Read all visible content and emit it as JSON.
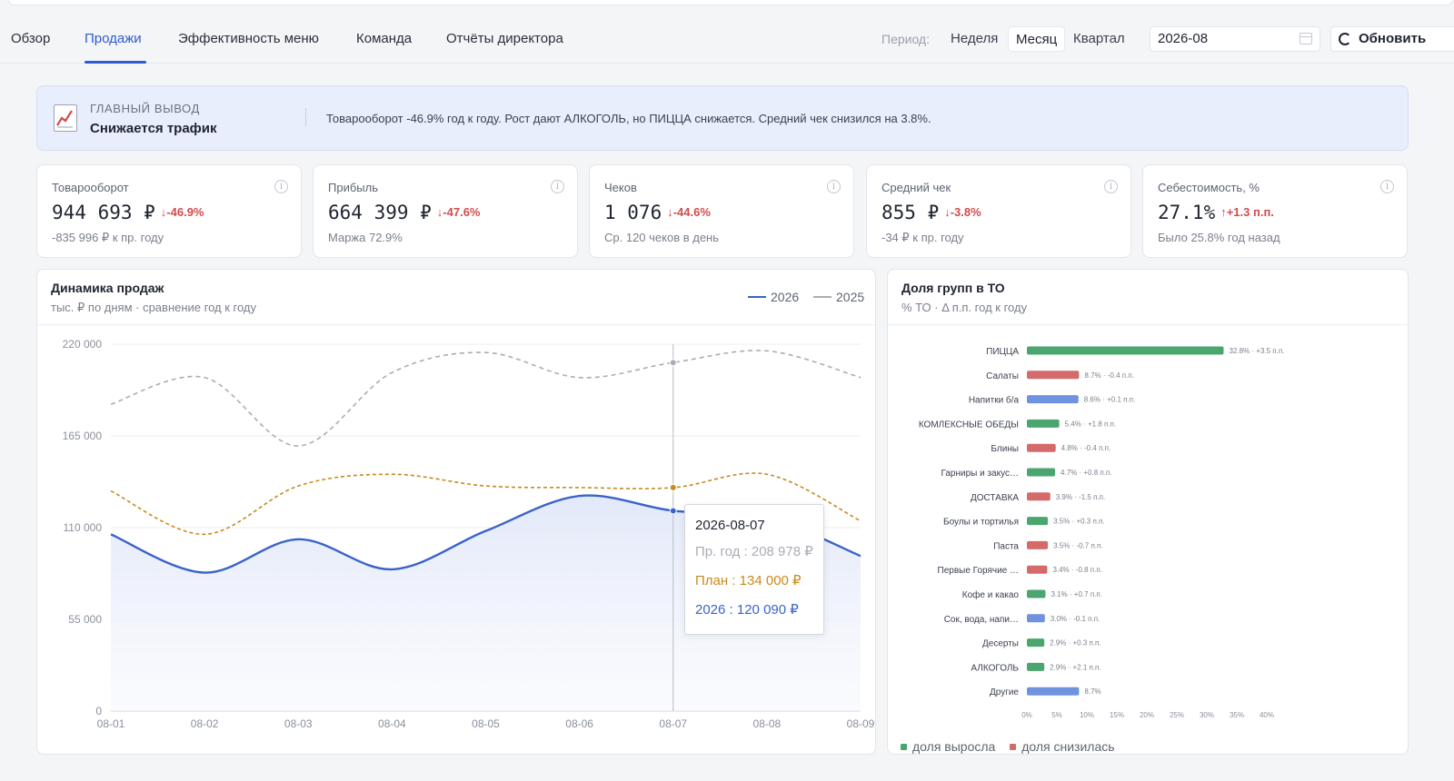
{
  "tabs": [
    {
      "label": "Обзор",
      "active": false
    },
    {
      "label": "Продажи",
      "active": true
    },
    {
      "label": "Эффективность меню",
      "active": false
    },
    {
      "label": "Команда",
      "active": false
    },
    {
      "label": "Отчёты директора",
      "active": false
    }
  ],
  "period": {
    "label": "Период:",
    "options": [
      "Неделя",
      "Месяц",
      "Квартал"
    ],
    "selected": "Месяц",
    "date_value": "2026-08",
    "refresh_label": "Обновить"
  },
  "banner": {
    "kicker": "ГЛАВНЫЙ ВЫВОД",
    "title": "Снижается трафик",
    "text": "Товарооборот -46.9% год к году. Рост дают АЛКОГОЛЬ, но ПИЦЦА снижается. Средний чек снизился на 3.8%."
  },
  "kpis": [
    {
      "label": "Товарооборот",
      "value": "944 693 ₽",
      "delta": "↓-46.9%",
      "sub": "-835 996 ₽ к пр. году"
    },
    {
      "label": "Прибыль",
      "value": "664 399 ₽",
      "delta": "↓-47.6%",
      "sub": "Маржа 72.9%"
    },
    {
      "label": "Чеков",
      "value": "1 076",
      "delta": "↓-44.6%",
      "sub": "Ср. 120 чеков в день"
    },
    {
      "label": "Средний чек",
      "value": "855 ₽",
      "delta": "↓-3.8%",
      "sub": "-34 ₽ к пр. году"
    },
    {
      "label": "Себестоимость, %",
      "value": "27.1%",
      "delta": "↑+1.3 п.п.",
      "sub": "Было 25.8% год назад"
    }
  ],
  "info_glyph": "i",
  "sales_panel": {
    "title": "Динамика продаж",
    "subtitle": "тыс. ₽ по дням · сравнение год к году",
    "legend": [
      "2026",
      "2025"
    ],
    "tooltip": {
      "date": "2026-08-07",
      "prev_year": "Пр. год : 208 978 ₽",
      "plan": "План : 134 000 ₽",
      "current": "2026 : 120 090 ₽"
    }
  },
  "share_panel": {
    "title": "Доля групп в ТО",
    "subtitle": "% ТО · Δ п.п. год к году",
    "legend_up": "доля выросла",
    "legend_down": "доля снизилась"
  },
  "colors": {
    "accent": "#2f5bd1",
    "line_2026": "#3a63c9",
    "line_2025": "#a9adb5",
    "line_plan": "#c98a1e",
    "bar_up": "#4aa66e",
    "bar_down": "#d46a6a",
    "bar_neutral": "#6f93de",
    "negative": "#d24b4b"
  },
  "chart_data": [
    {
      "type": "line",
      "x": [
        "08-01",
        "08-02",
        "08-03",
        "08-04",
        "08-05",
        "08-06",
        "08-07",
        "08-08",
        "08-09"
      ],
      "ylim": [
        0,
        220000
      ],
      "yticks": [
        "0",
        "55 000",
        "110 000",
        "165 000",
        "220 000"
      ],
      "series": [
        {
          "name": "2026",
          "values": [
            106000,
            83000,
            103000,
            85000,
            108000,
            129000,
            120090,
            116000,
            93000
          ]
        },
        {
          "name": "2025",
          "values": [
            184000,
            200000,
            159000,
            203000,
            215000,
            200000,
            208978,
            216000,
            200000
          ]
        },
        {
          "name": "План",
          "values": [
            132000,
            106000,
            135000,
            142000,
            135000,
            134000,
            134000,
            142000,
            114000
          ]
        }
      ]
    },
    {
      "type": "bar",
      "orientation": "horizontal",
      "xlim": [
        0,
        40
      ],
      "xticks": [
        "0%",
        "5%",
        "10%",
        "15%",
        "20%",
        "25%",
        "30%",
        "35%",
        "40%"
      ],
      "categories": [
        "ПИЦЦА",
        "Салаты",
        "Напитки б/а",
        "КОМЛЕКСНЫЕ ОБЕДЫ",
        "Блины",
        "Гарниры и закус…",
        "ДОСТАВКА",
        "Боулы и тортилья",
        "Паста",
        "Первые Горячие …",
        "Кофе и какао",
        "Сок, вода, напи…",
        "Десерты",
        "АЛКОГОЛЬ",
        "Другие"
      ],
      "values": [
        32.8,
        8.7,
        8.6,
        5.4,
        4.8,
        4.7,
        3.9,
        3.5,
        3.5,
        3.4,
        3.1,
        3.0,
        2.9,
        2.9,
        8.7
      ],
      "labels": [
        "32.8% · +3.5 п.п.",
        "8.7% · -0.4 п.п.",
        "8.6% · +0.1 п.п.",
        "5.4% · +1.8 п.п.",
        "4.8% · -0.4 п.п.",
        "4.7% · +0.8 п.п.",
        "3.9% · -1.5 п.п.",
        "3.5% · +0.3 п.п.",
        "3.5% · -0.7 п.п.",
        "3.4% · -0.8 п.п.",
        "3.1% · +0.7 п.п.",
        "3.0% · -0.1 п.п.",
        "2.9% · +0.3 п.п.",
        "2.9% · +2.1 п.п.",
        "8.7%"
      ],
      "trend": [
        "up",
        "down",
        "neutral",
        "up",
        "down",
        "up",
        "down",
        "up",
        "down",
        "down",
        "up",
        "neutral",
        "up",
        "up",
        "neutral"
      ]
    }
  ]
}
